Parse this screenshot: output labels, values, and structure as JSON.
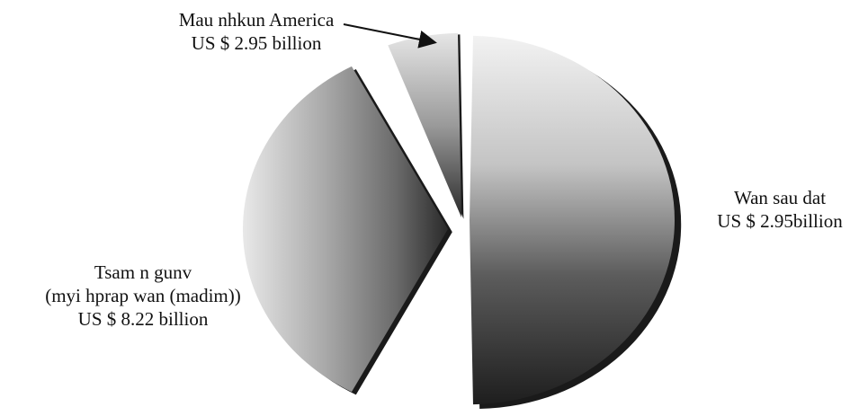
{
  "chart_data": {
    "type": "pie",
    "style": "3d-exploded-grayscale-gradient",
    "legend": "none",
    "slices": [
      {
        "name": "Mau nhkun America",
        "label_lines": [
          "Mau nhkun America",
          "US $ 2.95 billion"
        ],
        "value": 2.95
      },
      {
        "name": "Wan sau dat",
        "label_lines": [
          "Wan sau dat",
          "US $ 2.95billion"
        ],
        "value": 2.95
      },
      {
        "name": "Tsam n gunv (myi hprap wan (madim))",
        "label_lines": [
          "Tsam n gunv",
          "(myi hprap wan (madim))",
          "US $ 8.22 billion"
        ],
        "value": 8.22
      }
    ]
  }
}
